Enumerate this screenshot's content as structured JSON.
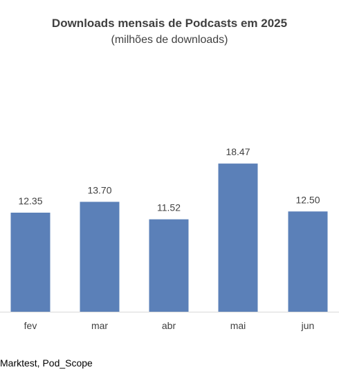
{
  "chart_data": {
    "type": "bar",
    "title": "Downloads mensais de Podcasts em 2025",
    "subtitle": "(milhões de downloads)",
    "categories": [
      "fev",
      "mar",
      "abr",
      "mai",
      "jun"
    ],
    "values": [
      12.35,
      13.7,
      11.52,
      18.47,
      12.5
    ],
    "value_labels": [
      "12.35",
      "13.70",
      "11.52",
      "18.47",
      "12.50"
    ],
    "bar_color": "#5B80B8",
    "axis_color": "#D9D9D9",
    "label_color": "#404040",
    "ylim": [
      0,
      20
    ],
    "grid": false,
    "legend": "none"
  },
  "source": "Marktest, Pod_Scope"
}
